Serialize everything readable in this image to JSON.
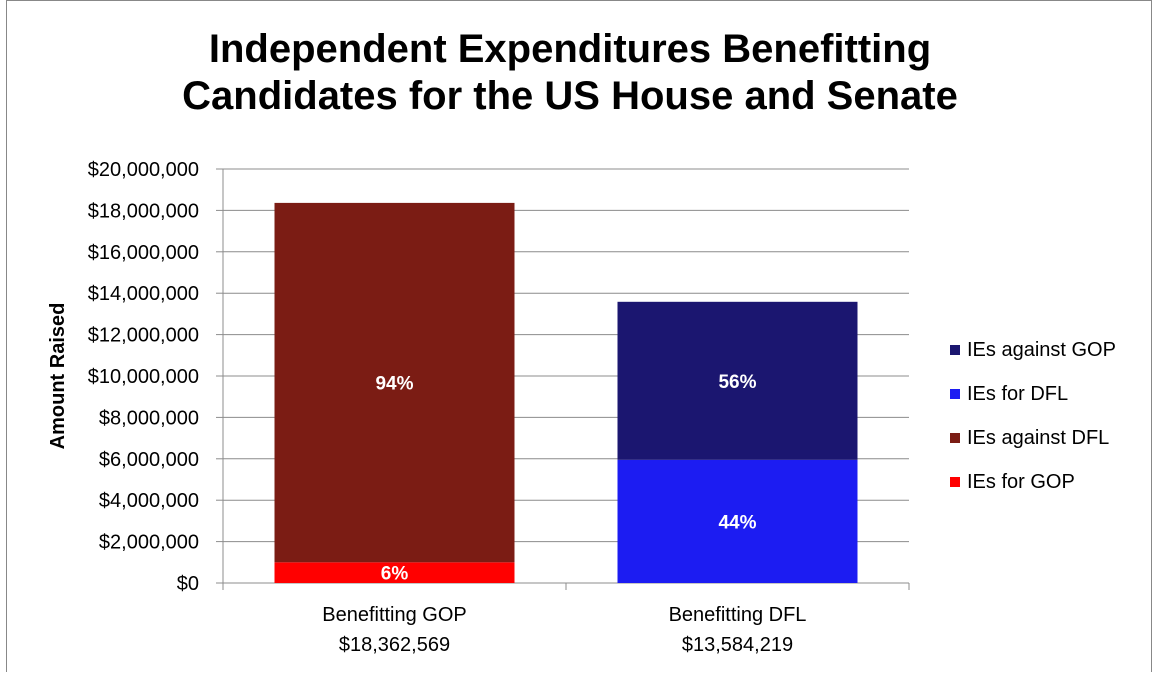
{
  "chart_data": {
    "type": "bar",
    "stacked": true,
    "title": "Independent Expenditures Benefitting Candidates for the US House and Senate",
    "title_lines": [
      "Independent Expenditures Benefitting",
      "Candidates for the US House and Senate"
    ],
    "ylabel": "Amount Raised",
    "ylim": [
      0,
      20000000
    ],
    "y_ticks": [
      0,
      2000000,
      4000000,
      6000000,
      8000000,
      10000000,
      12000000,
      14000000,
      16000000,
      18000000,
      20000000
    ],
    "y_tick_labels": [
      "$0",
      "$2,000,000",
      "$4,000,000",
      "$6,000,000",
      "$8,000,000",
      "$10,000,000",
      "$12,000,000",
      "$14,000,000",
      "$16,000,000",
      "$18,000,000",
      "$20,000,000"
    ],
    "grid": true,
    "legend_position": "right",
    "categories": [
      {
        "name": "Benefitting GOP",
        "total_label": "$18,362,569"
      },
      {
        "name": "Benefitting DFL",
        "total_label": "$13,584,219"
      }
    ],
    "series": [
      {
        "name": "IEs for GOP",
        "color": "#ff0000",
        "values": [
          1000000,
          0
        ],
        "labels": [
          "6%",
          ""
        ]
      },
      {
        "name": "IEs against DFL",
        "color": "#7b1c14",
        "values": [
          17362569,
          0
        ],
        "labels": [
          "94%",
          ""
        ]
      },
      {
        "name": "IEs for DFL",
        "color": "#1c1cf2",
        "values": [
          0,
          5950000
        ],
        "labels": [
          "",
          "44%"
        ]
      },
      {
        "name": "IEs against GOP",
        "color": "#1b1670",
        "values": [
          0,
          7634219
        ],
        "labels": [
          "",
          "56%"
        ]
      }
    ],
    "legend_order": [
      "IEs against GOP",
      "IEs for DFL",
      "IEs against DFL",
      "IEs for GOP"
    ]
  }
}
